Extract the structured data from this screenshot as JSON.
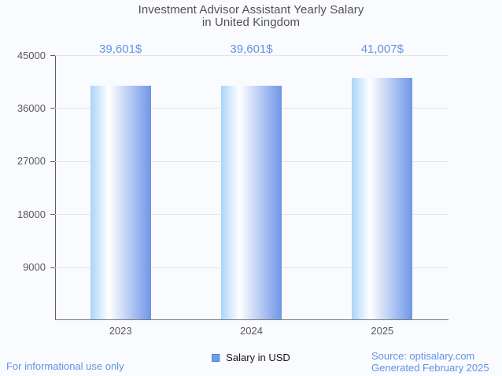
{
  "title": {
    "line1": "Investment Advisor Assistant Yearly Salary",
    "line2": "in United Kingdom"
  },
  "chart_data": {
    "type": "bar",
    "title": "Investment Advisor Assistant Yearly Salary in United Kingdom",
    "categories": [
      "2023",
      "2024",
      "2025"
    ],
    "series": [
      {
        "name": "Salary in USD",
        "values": [
          39601,
          39601,
          41007
        ]
      }
    ],
    "value_labels": [
      "39,601$",
      "39,601$",
      "41,007$"
    ],
    "xlabel": "",
    "ylabel": "",
    "ylim": [
      0,
      45000
    ],
    "yticks": [
      45000,
      36000,
      27000,
      18000,
      9000
    ],
    "grid": true,
    "legend_position": "bottom",
    "bar_gradient": [
      "#aad4f9",
      "#ffffff",
      "#6f96e8"
    ]
  },
  "legend": {
    "label": "Salary in USD",
    "marker_color": "#64a0f0",
    "marker_border": "#4f7ed0"
  },
  "footer": {
    "disclaimer": "For informational use only",
    "source": "Source: optisalary.com",
    "generated": "Generated February 2025"
  },
  "colors": {
    "background": "#fafbfe",
    "accent_blue": "#6292e2",
    "title_gray": "#515155",
    "axis_label_gray": "#58585c",
    "axis_line_dark": "#5e5e62",
    "axis_line_light": "#7a7a7a",
    "gridline": "#e4e4e4"
  }
}
